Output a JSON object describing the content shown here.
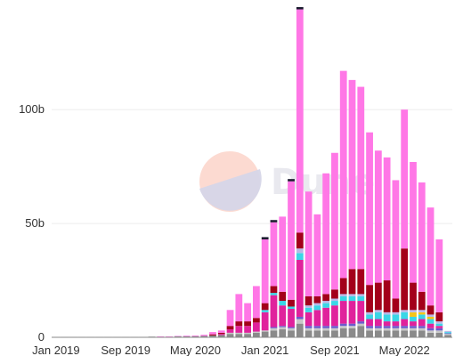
{
  "chart_data": {
    "type": "bar",
    "stacked": true,
    "grid": true,
    "legend": "none",
    "watermark": "Dune",
    "x_ticks": [
      "Jan 2019",
      "Sep 2019",
      "May 2020",
      "Jan 2021",
      "Sep 2021",
      "May 2022"
    ],
    "y_ticks": [
      "0",
      "50b",
      "100b"
    ],
    "ylim": [
      0,
      145
    ],
    "y_unit": "b",
    "categories": [
      "2019-01",
      "2019-02",
      "2019-03",
      "2019-04",
      "2019-05",
      "2019-06",
      "2019-07",
      "2019-08",
      "2019-09",
      "2019-10",
      "2019-11",
      "2019-12",
      "2020-01",
      "2020-02",
      "2020-03",
      "2020-04",
      "2020-05",
      "2020-06",
      "2020-07",
      "2020-08",
      "2020-09",
      "2020-10",
      "2020-11",
      "2020-12",
      "2021-01",
      "2021-02",
      "2021-03",
      "2021-04",
      "2021-05",
      "2021-06",
      "2021-07",
      "2021-08",
      "2021-09",
      "2021-10",
      "2021-11",
      "2021-12",
      "2022-01",
      "2022-02",
      "2022-03",
      "2022-04",
      "2022-05",
      "2022-06",
      "2022-07",
      "2022-08",
      "2022-09",
      "2022-10"
    ],
    "series": [
      {
        "color": "#8a8a8a",
        "values": [
          0.2,
          0.2,
          0.2,
          0.2,
          0.2,
          0.2,
          0.2,
          0.2,
          0.2,
          0.2,
          0.2,
          0.3,
          0.3,
          0.3,
          0.4,
          0.4,
          0.5,
          0.6,
          0.8,
          1,
          1.5,
          1.5,
          1.5,
          2,
          2.5,
          3,
          3.5,
          3,
          6,
          3,
          3,
          3,
          3,
          4,
          4,
          5,
          3,
          3,
          3,
          3,
          3,
          3,
          3,
          2,
          2,
          1
        ]
      },
      {
        "color": "#c7c7c7",
        "values": [
          0,
          0,
          0,
          0,
          0,
          0,
          0,
          0,
          0,
          0,
          0,
          0,
          0,
          0,
          0,
          0,
          0,
          0,
          0,
          0,
          0.5,
          0.5,
          0.5,
          0.5,
          0.5,
          1,
          1,
          1,
          2,
          1,
          1,
          1,
          1,
          1,
          1,
          1,
          1,
          1,
          1,
          1,
          1,
          1,
          1,
          1,
          1,
          0.5
        ]
      },
      {
        "color": "#6a5acd",
        "values": [
          0,
          0,
          0,
          0,
          0,
          0,
          0,
          0,
          0,
          0,
          0,
          0,
          0,
          0,
          0,
          0,
          0,
          0,
          0,
          0,
          0,
          0,
          0,
          0,
          0,
          0.5,
          0.5,
          0.5,
          1,
          1,
          1,
          1,
          1,
          1,
          1,
          1,
          1,
          1,
          1,
          1,
          1,
          1,
          1,
          1,
          1,
          0.3
        ]
      },
      {
        "color": "#e0229c",
        "values": [
          0,
          0,
          0,
          0,
          0,
          0,
          0,
          0,
          0,
          0,
          0,
          0,
          0,
          0,
          0,
          0,
          0,
          0,
          0,
          0.5,
          1.5,
          3,
          3,
          4,
          8,
          14,
          9,
          8,
          25,
          6,
          7,
          8,
          9,
          10,
          10,
          9,
          3,
          3,
          2,
          2,
          3,
          2,
          3,
          2,
          1,
          0
        ]
      },
      {
        "color": "#3ad6e6",
        "values": [
          0,
          0,
          0,
          0,
          0,
          0,
          0,
          0,
          0,
          0,
          0,
          0,
          0,
          0,
          0,
          0,
          0,
          0,
          0,
          0,
          0,
          0,
          0,
          0,
          1,
          1,
          2,
          1,
          3,
          2,
          2,
          2,
          2,
          2,
          2,
          2,
          2,
          3,
          3,
          3,
          3,
          2,
          2,
          2,
          1,
          0.5
        ]
      },
      {
        "color": "#f5c518",
        "values": [
          0,
          0,
          0,
          0,
          0,
          0,
          0,
          0,
          0,
          0,
          0,
          0,
          0,
          0,
          0,
          0,
          0,
          0,
          0,
          0,
          0,
          0,
          0,
          0,
          0,
          0,
          0,
          0,
          0,
          0,
          0,
          0,
          0,
          0,
          0,
          0,
          0,
          0,
          0,
          0,
          0,
          2,
          1,
          1,
          0,
          0
        ]
      },
      {
        "color": "#b8b8e8",
        "values": [
          0,
          0,
          0,
          0,
          0,
          0,
          0,
          0,
          0,
          0,
          0,
          0,
          0,
          0,
          0,
          0,
          0,
          0,
          0,
          0,
          0,
          0,
          0,
          0,
          0,
          0,
          0,
          0,
          2,
          1,
          1,
          1,
          1,
          1,
          1,
          1,
          1,
          1,
          1,
          1,
          1,
          1,
          1,
          1,
          1,
          0.5
        ]
      },
      {
        "color": "#a3001a",
        "values": [
          0,
          0,
          0,
          0,
          0,
          0,
          0,
          0,
          0,
          0,
          0,
          0,
          0,
          0,
          0,
          0,
          0,
          0,
          0.5,
          0.5,
          1.5,
          2,
          2,
          2,
          3,
          3,
          4,
          3,
          7,
          4,
          3,
          3,
          4,
          7,
          11,
          11,
          12,
          12,
          14,
          6,
          27,
          12,
          8,
          4,
          4,
          0
        ]
      },
      {
        "color": "#ff77e6",
        "values": [
          0,
          0,
          0,
          0,
          0,
          0,
          0,
          0,
          0,
          0,
          0,
          0,
          0.1,
          0.1,
          0.2,
          0.3,
          0.3,
          0.5,
          1,
          1,
          7,
          12,
          8,
          14,
          28,
          28,
          33,
          52,
          98,
          46,
          36,
          53,
          60,
          91,
          83,
          80,
          67,
          58,
          54,
          52,
          61,
          53,
          48,
          43,
          32,
          0
        ]
      },
      {
        "color": "#1a1a2e",
        "values": [
          0,
          0,
          0,
          0,
          0,
          0,
          0,
          0,
          0,
          0,
          0,
          0,
          0,
          0,
          0,
          0,
          0,
          0,
          0,
          0,
          0,
          0,
          0,
          0,
          1,
          1,
          0,
          1,
          1,
          0,
          0,
          0,
          0,
          0,
          0,
          0,
          0,
          0,
          0,
          0,
          0,
          0,
          0,
          0,
          0,
          0
        ]
      }
    ]
  }
}
